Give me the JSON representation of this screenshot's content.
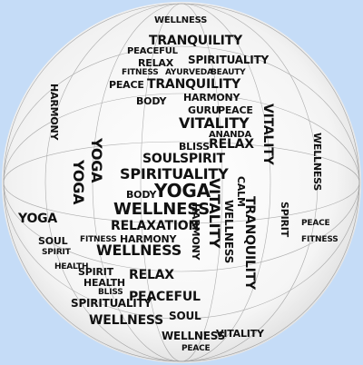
{
  "colors": {
    "background": "#c5dcf7",
    "ink": "#111111"
  },
  "words": {
    "w0": "WELLNESS",
    "w1": "TRANQUILITY",
    "w2": "PEACEFUL",
    "w3": "SPIRITUALITY",
    "w4": "RELAX",
    "w5": "FITNESS",
    "w6": "AYURVEDA",
    "w7": "BEAUTY",
    "w8": "PEACE",
    "w9": "TRANQUILITY",
    "w10": "HARMONY",
    "w11": "BODY",
    "w12": "GURU",
    "w13": "PEACE",
    "w14": "VITALITY",
    "w15": "ANANDA",
    "w16": "BLISS",
    "w17": "RELAX",
    "w18": "SOUL",
    "w19": "SPIRIT",
    "w20": "SPIRITUALITY",
    "w21": "YOGA",
    "w22": "BODY",
    "w23": "WELLNESS",
    "w24": "RELAXATION",
    "w25": "FITNESS",
    "w26": "HARMONY",
    "w27": "WELLNESS",
    "w28": "YOGA",
    "w29": "SOUL",
    "w30": "SPIRIT",
    "w31": "HEALTH",
    "w32": "SPIRIT",
    "w33": "HEALTH",
    "w34": "RELAX",
    "w35": "BLISS",
    "w36": "PEACEFUL",
    "w37": "SPIRITUALITY",
    "w38": "WELLNESS",
    "w39": "SOUL",
    "w40": "WELLNESS",
    "w41": "VITALITY",
    "w42": "PEACE",
    "w43": "YOGA",
    "w44": "YOGA",
    "w45": "VITALITY",
    "w46": "TRANQUILITY",
    "w47": "HARMONY",
    "w48": "WELLNESS",
    "w49": "CALM",
    "w50": "VITALITY",
    "w51": "SPIRIT",
    "w52": "FITNESS",
    "w53": "PEACE",
    "w54": "WELLNESS",
    "w55": "HARMONY"
  }
}
